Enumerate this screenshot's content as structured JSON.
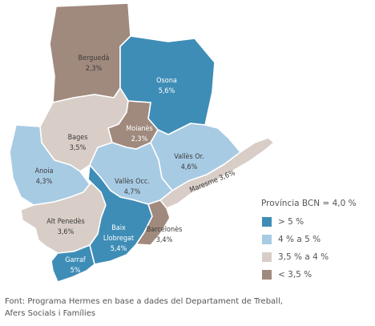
{
  "map": {
    "regions": [
      {
        "id": "bergueda",
        "name": "Berguedà",
        "value": "2,3%",
        "class": "lt35"
      },
      {
        "id": "osona",
        "name": "Osona",
        "value": "5,6%",
        "class": "gt5"
      },
      {
        "id": "bages",
        "name": "Bages",
        "value": "3,5%",
        "class": "35to4"
      },
      {
        "id": "moianes",
        "name": "Moianès",
        "value": "2,3%",
        "class": "lt35"
      },
      {
        "id": "valles-or",
        "name": "Vallès Or.",
        "value": "4,6%",
        "class": "4to5"
      },
      {
        "id": "anoia",
        "name": "Anoia",
        "value": "4,3%",
        "class": "4to5"
      },
      {
        "id": "valles-occ",
        "name": "Vallès Occ.",
        "value": "4,7%",
        "class": "4to5"
      },
      {
        "id": "maresme",
        "name": "Maresme",
        "value": "3,6%",
        "class": "35to4"
      },
      {
        "id": "alt-penedes",
        "name": "Alt Penedès",
        "value": "3,6%",
        "class": "35to4"
      },
      {
        "id": "baix-llobregat",
        "name": "Baix Llobregat",
        "value": "5,4%",
        "class": "gt5"
      },
      {
        "id": "barcelones",
        "name": "Barcelonès",
        "value": "3,4%",
        "class": "lt35"
      },
      {
        "id": "garraf",
        "name": "Garraf",
        "value": "5%",
        "class": "gt5"
      }
    ]
  },
  "legend": {
    "title": "Província BCN = 4,0 %",
    "items": [
      {
        "key": "gt5",
        "label": "> 5 %",
        "color": "#3e8db7"
      },
      {
        "key": "4to5",
        "label": "4 % a 5 %",
        "color": "#a8cbe4"
      },
      {
        "key": "35to4",
        "label": "3,5 % a 4 %",
        "color": "#d8cdc7"
      },
      {
        "key": "lt35",
        "label": "< 3,5 %",
        "color": "#a08a7d"
      }
    ]
  },
  "source": {
    "line1": "Font: Programa Hermes en base a dades del Departament de Treball,",
    "line2": "Afers Socials i Famílies"
  }
}
